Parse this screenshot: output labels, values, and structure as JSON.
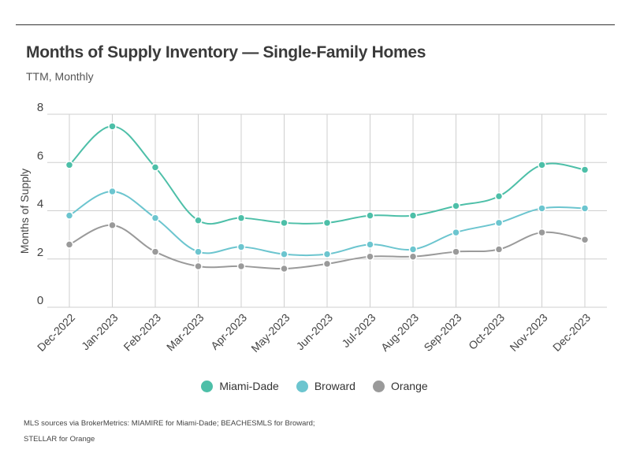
{
  "header": {
    "title": "Months of Supply Inventory — Single-Family Homes",
    "subtitle": "TTM, Monthly"
  },
  "footer": {
    "source_line1": "MLS sources via BrokerMetrics: MIAMIRE for Miami-Dade; BEACHESMLS for Broward;",
    "source_line2": "STELLAR for Orange"
  },
  "chart_data": {
    "type": "line",
    "title": "Months of Supply Inventory — Single-Family Homes",
    "subtitle": "TTM, Monthly",
    "xlabel": "",
    "ylabel": "Months of Supply",
    "ylim": [
      0,
      8
    ],
    "yticks": [
      0,
      2,
      4,
      6,
      8
    ],
    "grid": true,
    "legend_position": "bottom",
    "categories": [
      "Dec-2022",
      "Jan-2023",
      "Feb-2023",
      "Mar-2023",
      "Apr-2023",
      "May-2023",
      "Jun-2023",
      "Jul-2023",
      "Aug-2023",
      "Sep-2023",
      "Oct-2023",
      "Nov-2023",
      "Dec-2023"
    ],
    "series": [
      {
        "name": "Miami-Dade",
        "color": "#4dbfa8",
        "values": [
          5.9,
          7.5,
          5.8,
          3.6,
          3.7,
          3.5,
          3.5,
          3.8,
          3.8,
          4.2,
          4.6,
          5.9,
          5.7
        ]
      },
      {
        "name": "Broward",
        "color": "#6cc5cf",
        "values": [
          3.8,
          4.8,
          3.7,
          2.3,
          2.5,
          2.2,
          2.2,
          2.6,
          2.4,
          3.1,
          3.5,
          4.1,
          4.1
        ]
      },
      {
        "name": "Orange",
        "color": "#9a9a9a",
        "values": [
          2.6,
          3.4,
          2.3,
          1.7,
          1.7,
          1.6,
          1.8,
          2.1,
          2.1,
          2.3,
          2.4,
          3.1,
          2.8
        ]
      }
    ]
  }
}
